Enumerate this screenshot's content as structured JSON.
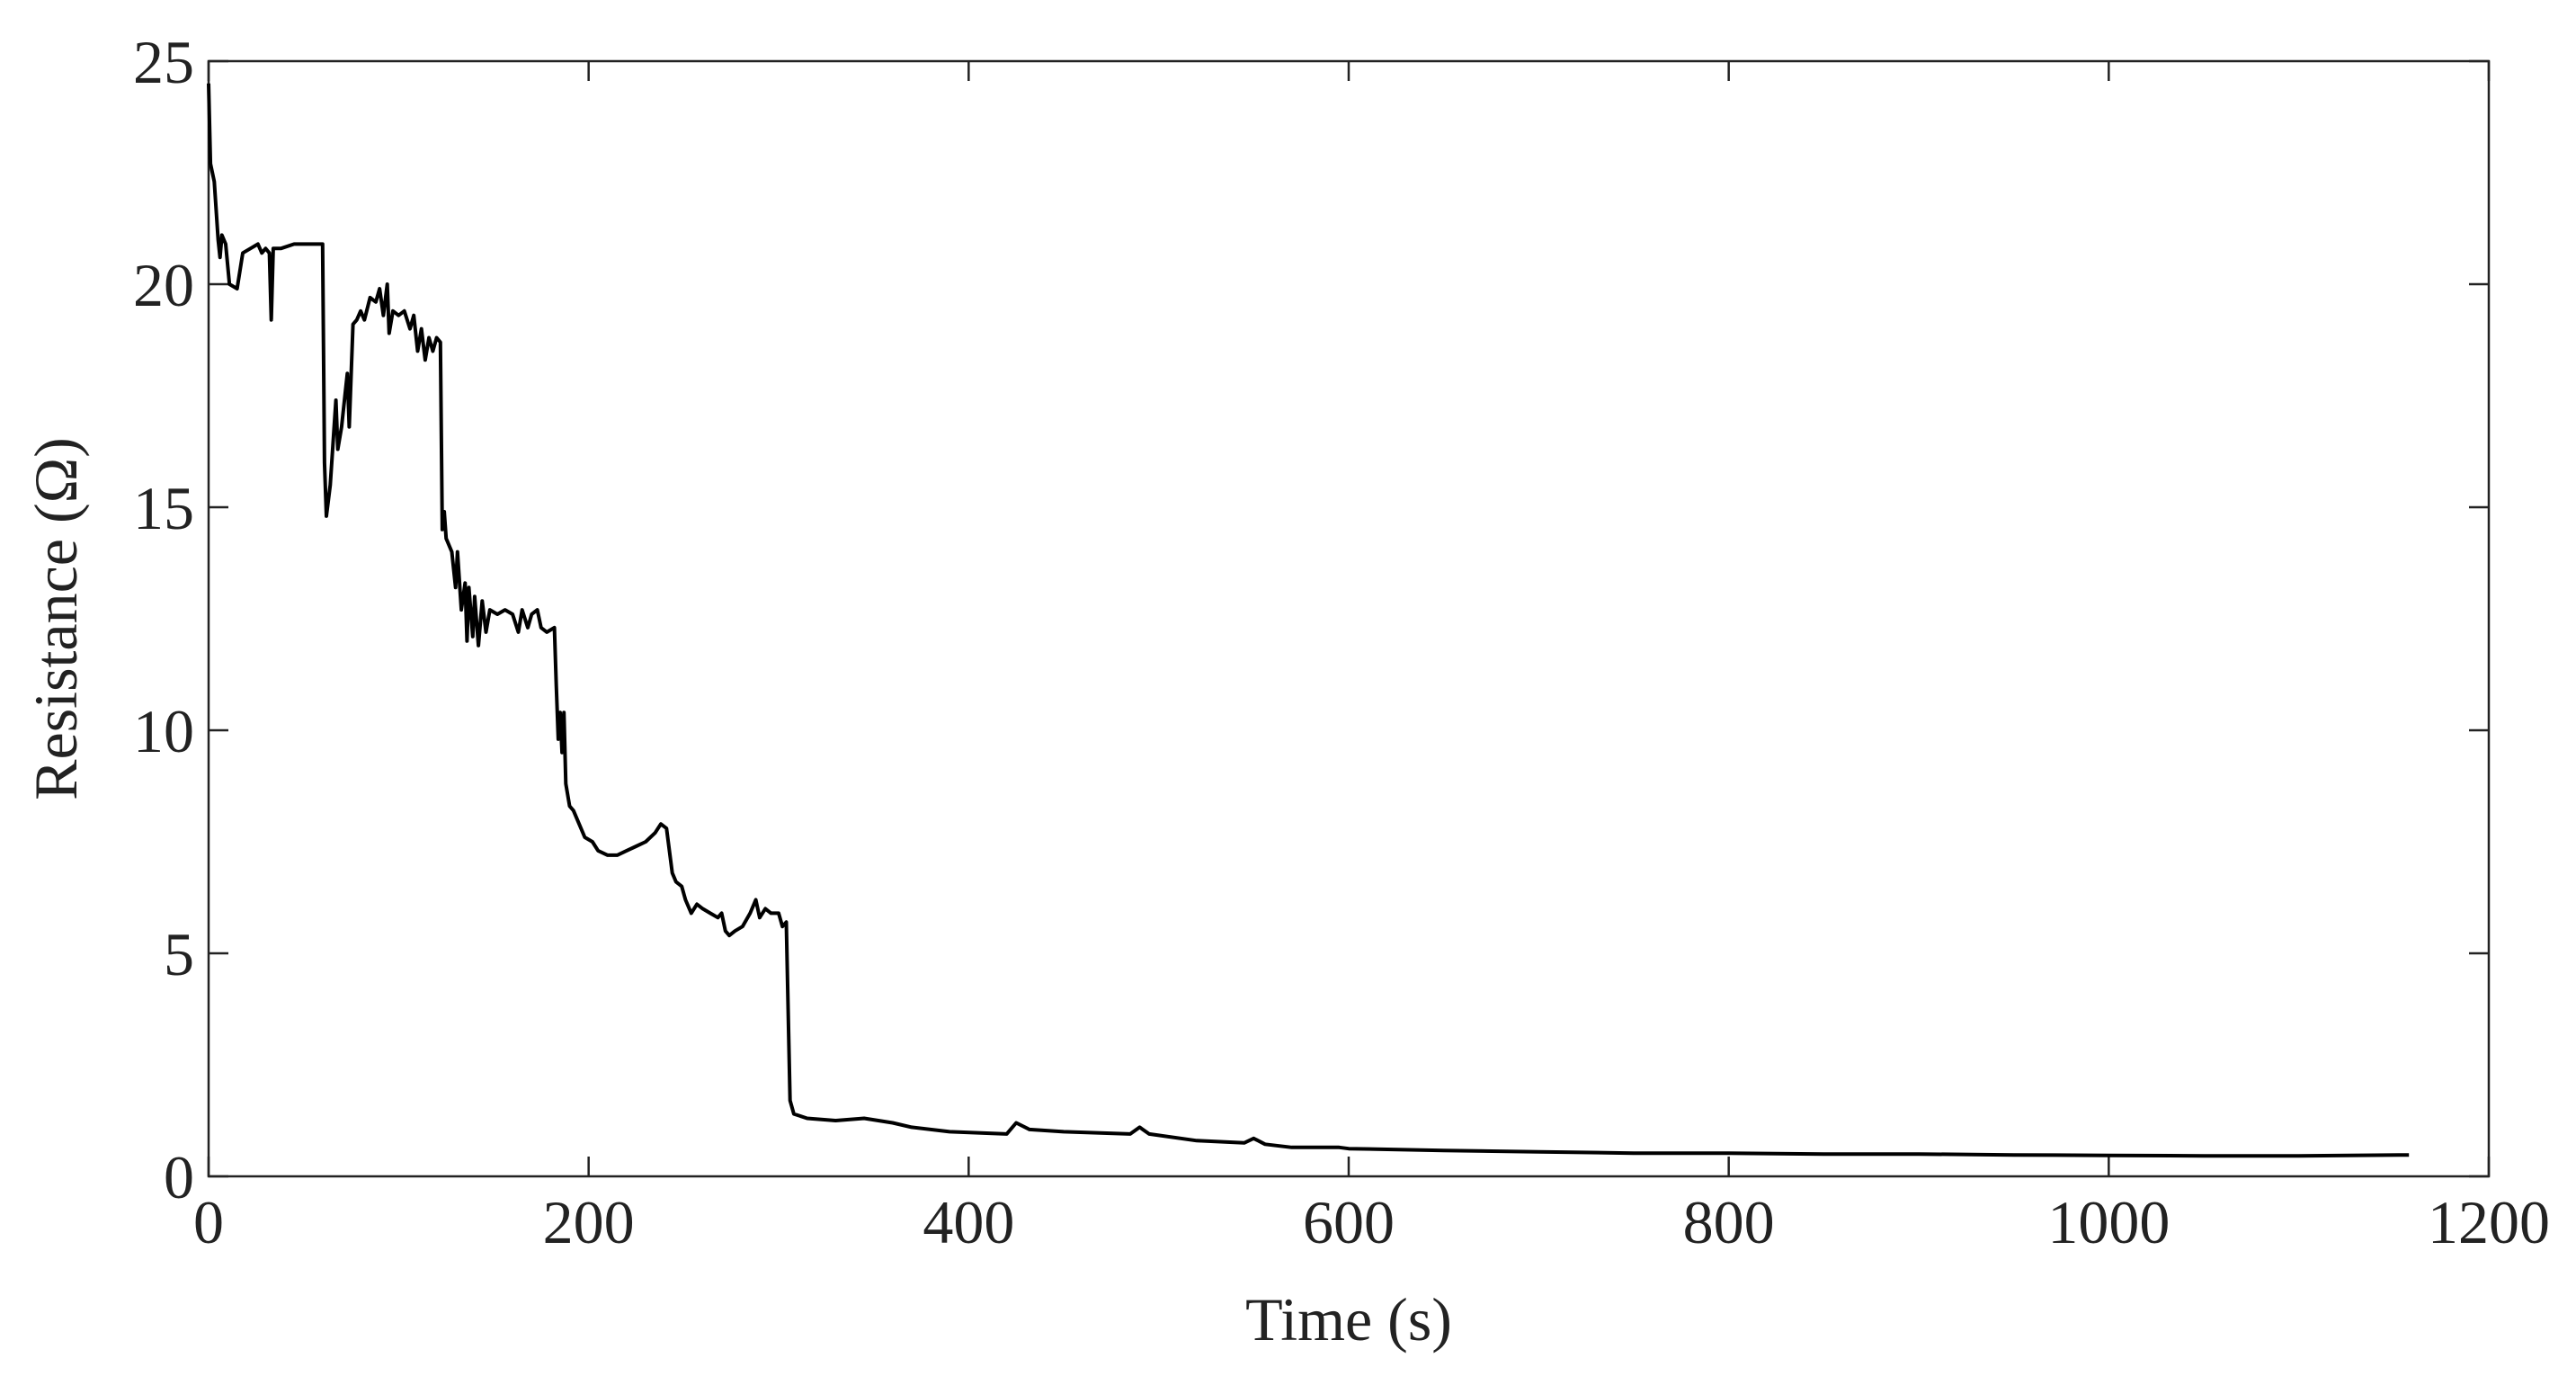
{
  "chart_data": {
    "type": "line",
    "xlabel": "Time (s)",
    "ylabel": "Resistance (Ω)",
    "xlim": [
      0,
      1200
    ],
    "xticks": [
      0,
      200,
      400,
      600,
      800,
      1000,
      1200
    ],
    "ylim": [
      0,
      25
    ],
    "yticks": [
      0,
      5,
      10,
      15,
      20,
      25
    ],
    "grid": false,
    "box": true,
    "x": [
      0,
      1,
      3,
      5,
      6,
      7,
      9,
      11,
      15,
      18,
      22,
      26,
      28,
      30,
      32,
      33,
      34,
      38,
      45,
      55,
      60,
      61,
      62,
      64,
      67,
      68,
      70,
      73,
      74,
      76,
      78,
      80,
      82,
      85,
      88,
      90,
      92,
      94,
      95,
      97,
      100,
      103,
      106,
      108,
      110,
      112,
      114,
      116,
      118,
      120,
      122,
      123,
      124,
      125,
      128,
      130,
      131,
      133,
      135,
      136,
      137,
      139,
      140,
      142,
      144,
      146,
      148,
      152,
      156,
      160,
      163,
      165,
      168,
      170,
      173,
      175,
      178,
      182,
      183,
      184,
      185,
      186,
      187,
      188,
      190,
      192,
      195,
      198,
      202,
      205,
      210,
      215,
      220,
      225,
      230,
      235,
      238,
      241,
      244,
      246,
      249,
      251,
      254,
      257,
      260,
      264,
      268,
      270,
      272,
      274,
      277,
      281,
      285,
      288,
      290,
      293,
      296,
      300,
      302,
      304,
      306,
      308,
      315,
      330,
      345,
      360,
      370,
      390,
      420,
      425,
      432,
      450,
      485,
      490,
      495,
      520,
      545,
      550,
      556,
      570,
      595,
      600,
      650,
      700,
      750,
      800,
      850,
      900,
      950,
      1000,
      1050,
      1100,
      1158
    ],
    "series": [
      {
        "color": "#000000",
        "values": [
          24.5,
          22.7,
          22.3,
          21.0,
          20.6,
          21.1,
          20.9,
          20.0,
          19.9,
          20.7,
          20.8,
          20.9,
          20.7,
          20.8,
          20.7,
          19.2,
          20.8,
          20.8,
          20.9,
          20.9,
          20.9,
          16.0,
          14.8,
          15.5,
          17.4,
          16.3,
          16.8,
          18.0,
          16.8,
          19.1,
          19.2,
          19.4,
          19.2,
          19.7,
          19.6,
          19.9,
          19.3,
          20.0,
          18.9,
          19.4,
          19.3,
          19.4,
          19.0,
          19.3,
          18.5,
          19.0,
          18.3,
          18.8,
          18.5,
          18.8,
          18.7,
          14.5,
          14.9,
          14.3,
          14.0,
          13.2,
          14.0,
          12.7,
          13.3,
          12.0,
          13.2,
          12.1,
          13.0,
          11.9,
          12.9,
          12.2,
          12.7,
          12.6,
          12.7,
          12.6,
          12.2,
          12.7,
          12.3,
          12.6,
          12.7,
          12.3,
          12.2,
          12.3,
          11.0,
          9.8,
          10.4,
          9.5,
          10.4,
          8.8,
          8.3,
          8.2,
          7.9,
          7.6,
          7.5,
          7.3,
          7.2,
          7.2,
          7.3,
          7.4,
          7.5,
          7.7,
          7.9,
          7.8,
          6.8,
          6.6,
          6.5,
          6.2,
          5.9,
          6.1,
          6.0,
          5.9,
          5.8,
          5.9,
          5.5,
          5.4,
          5.5,
          5.6,
          5.9,
          6.2,
          5.8,
          6.0,
          5.9,
          5.9,
          5.6,
          5.7,
          1.7,
          1.4,
          1.3,
          1.25,
          1.3,
          1.2,
          1.1,
          1.0,
          0.95,
          1.2,
          1.05,
          1.0,
          0.95,
          1.1,
          0.95,
          0.8,
          0.75,
          0.85,
          0.72,
          0.65,
          0.65,
          0.62,
          0.58,
          0.55,
          0.52,
          0.52,
          0.5,
          0.5,
          0.48,
          0.47,
          0.46,
          0.46,
          0.48
        ]
      }
    ]
  }
}
